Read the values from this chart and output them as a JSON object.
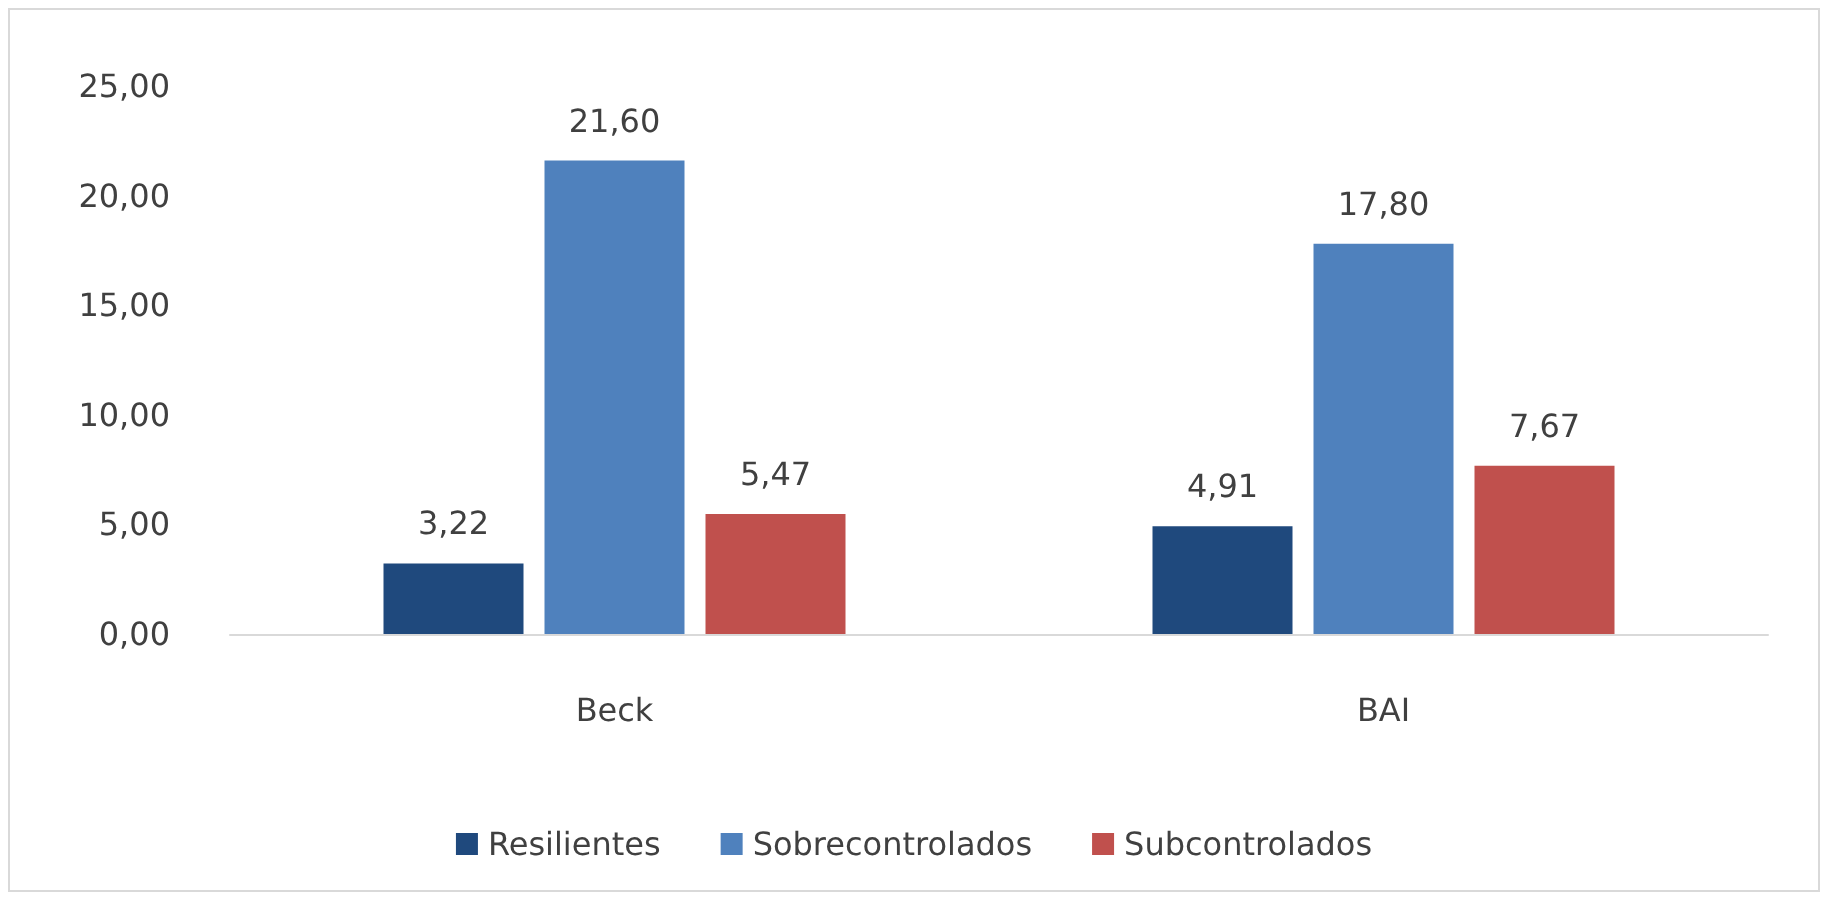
{
  "chart_data": {
    "type": "bar",
    "categories": [
      "Beck",
      "BAI"
    ],
    "series": [
      {
        "name": "Resilientes",
        "color": "#1f497d",
        "values": [
          3.22,
          4.91
        ],
        "value_labels": [
          "3,22",
          "4,91"
        ]
      },
      {
        "name": "Sobrecontrolados",
        "color": "#4f81bd",
        "values": [
          21.6,
          17.8
        ],
        "value_labels": [
          "21,60",
          "17,80"
        ]
      },
      {
        "name": "Subcontrolados",
        "color": "#c0504d",
        "values": [
          5.47,
          7.67
        ],
        "value_labels": [
          "5,47",
          "7,67"
        ]
      }
    ],
    "ylim": [
      0,
      25
    ],
    "yticks": [
      {
        "value": 0,
        "label": "0,00"
      },
      {
        "value": 5,
        "label": "5,00"
      },
      {
        "value": 10,
        "label": "10,00"
      },
      {
        "value": 15,
        "label": "15,00"
      },
      {
        "value": 20,
        "label": "20,00"
      },
      {
        "value": 25,
        "label": "25,00"
      }
    ],
    "grid": false,
    "legend": "bottom"
  }
}
